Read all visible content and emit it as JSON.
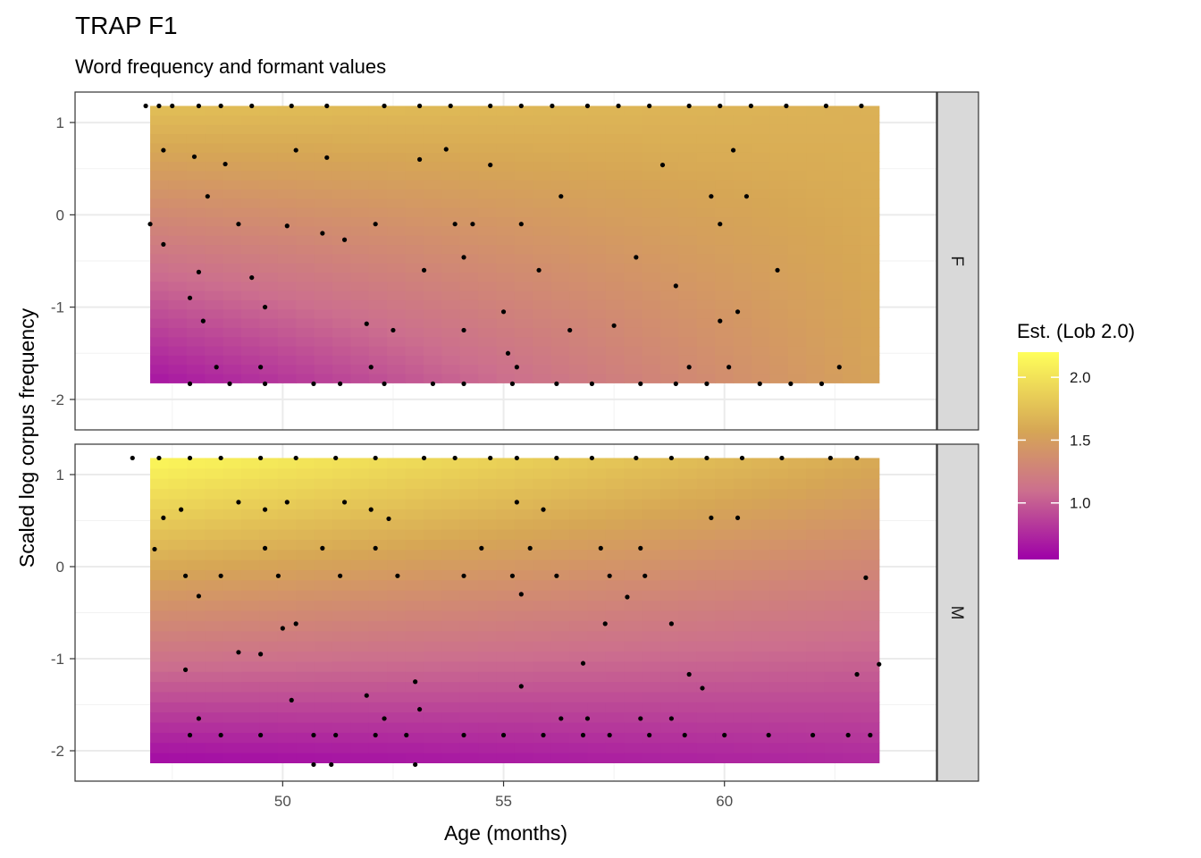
{
  "chart_data": {
    "type": "heatmap",
    "title": "TRAP F1",
    "subtitle": "Word frequency and formant values",
    "xlabel": "Age (months)",
    "ylabel": "Scaled log corpus frequency",
    "xlim": [
      45.3,
      64.8
    ],
    "ylim": [
      -2.33,
      1.33
    ],
    "x_ticks": [
      50,
      55,
      60
    ],
    "y_ticks": [
      1,
      0,
      -1,
      -2
    ],
    "grid": true,
    "legend": {
      "title": "Est. (Lob 2.0)",
      "position": "right",
      "range": [
        0.55,
        2.2
      ],
      "ticks": [
        2.0,
        1.5,
        1.0
      ],
      "colors": [
        "#9E00A8",
        "#CC6F8E",
        "#D6A655",
        "#FFFF5A"
      ]
    },
    "panels": [
      {
        "facet": "F",
        "surface": {
          "value_at_top_left": 1.75,
          "value_at_top_right": 1.65,
          "value_at_bottom_left": 0.65,
          "value_at_bottom_right": 1.55,
          "x_range": [
            47.0,
            63.5
          ],
          "y_range": [
            -1.82,
            1.18
          ]
        },
        "points": [
          [
            46.9,
            1.18
          ],
          [
            47.2,
            1.18
          ],
          [
            47.5,
            1.18
          ],
          [
            48.1,
            1.18
          ],
          [
            48.6,
            1.18
          ],
          [
            49.3,
            1.18
          ],
          [
            50.2,
            1.18
          ],
          [
            51.0,
            1.18
          ],
          [
            52.3,
            1.18
          ],
          [
            53.1,
            1.18
          ],
          [
            53.8,
            1.18
          ],
          [
            54.7,
            1.18
          ],
          [
            55.4,
            1.18
          ],
          [
            56.1,
            1.18
          ],
          [
            56.9,
            1.18
          ],
          [
            57.6,
            1.18
          ],
          [
            58.3,
            1.18
          ],
          [
            59.2,
            1.18
          ],
          [
            59.9,
            1.18
          ],
          [
            60.6,
            1.18
          ],
          [
            61.4,
            1.18
          ],
          [
            62.3,
            1.18
          ],
          [
            63.1,
            1.18
          ],
          [
            47.3,
            0.7
          ],
          [
            48.0,
            0.63
          ],
          [
            48.7,
            0.55
          ],
          [
            50.3,
            0.7
          ],
          [
            51.0,
            0.62
          ],
          [
            53.1,
            0.6
          ],
          [
            53.7,
            0.71
          ],
          [
            54.7,
            0.54
          ],
          [
            58.6,
            0.54
          ],
          [
            60.2,
            0.7
          ],
          [
            47.0,
            -0.1
          ],
          [
            48.3,
            0.2
          ],
          [
            49.0,
            -0.1
          ],
          [
            50.1,
            -0.12
          ],
          [
            50.9,
            -0.2
          ],
          [
            51.4,
            -0.27
          ],
          [
            52.1,
            -0.1
          ],
          [
            53.9,
            -0.1
          ],
          [
            54.3,
            -0.1
          ],
          [
            55.4,
            -0.1
          ],
          [
            56.3,
            0.2
          ],
          [
            59.7,
            0.2
          ],
          [
            59.9,
            -0.1
          ],
          [
            60.5,
            0.2
          ],
          [
            47.3,
            -0.32
          ],
          [
            48.1,
            -0.62
          ],
          [
            49.3,
            -0.68
          ],
          [
            53.2,
            -0.6
          ],
          [
            54.1,
            -0.46
          ],
          [
            55.8,
            -0.6
          ],
          [
            58.0,
            -0.46
          ],
          [
            58.9,
            -0.77
          ],
          [
            61.2,
            -0.6
          ],
          [
            47.9,
            -0.9
          ],
          [
            48.2,
            -1.15
          ],
          [
            49.6,
            -1.0
          ],
          [
            51.9,
            -1.18
          ],
          [
            52.5,
            -1.25
          ],
          [
            54.1,
            -1.25
          ],
          [
            55.0,
            -1.05
          ],
          [
            56.5,
            -1.25
          ],
          [
            57.5,
            -1.2
          ],
          [
            59.9,
            -1.15
          ],
          [
            60.3,
            -1.05
          ],
          [
            48.5,
            -1.65
          ],
          [
            49.5,
            -1.65
          ],
          [
            52.0,
            -1.65
          ],
          [
            55.1,
            -1.5
          ],
          [
            55.3,
            -1.65
          ],
          [
            59.2,
            -1.65
          ],
          [
            60.1,
            -1.65
          ],
          [
            62.6,
            -1.65
          ],
          [
            47.9,
            -1.83
          ],
          [
            48.8,
            -1.83
          ],
          [
            49.6,
            -1.83
          ],
          [
            50.7,
            -1.83
          ],
          [
            51.3,
            -1.83
          ],
          [
            52.3,
            -1.83
          ],
          [
            53.4,
            -1.83
          ],
          [
            54.1,
            -1.83
          ],
          [
            55.2,
            -1.83
          ],
          [
            56.2,
            -1.83
          ],
          [
            57.0,
            -1.83
          ],
          [
            58.1,
            -1.83
          ],
          [
            58.9,
            -1.83
          ],
          [
            59.6,
            -1.83
          ],
          [
            60.8,
            -1.83
          ],
          [
            61.5,
            -1.83
          ],
          [
            62.2,
            -1.83
          ]
        ]
      },
      {
        "facet": "M",
        "surface": {
          "value_at_top_left": 2.15,
          "value_at_top_right": 1.6,
          "value_at_bottom_left": 0.6,
          "value_at_bottom_right": 0.75,
          "x_range": [
            47.0,
            63.5
          ],
          "y_range": [
            -2.13,
            1.18
          ]
        },
        "points": [
          [
            46.6,
            1.18
          ],
          [
            47.2,
            1.18
          ],
          [
            47.9,
            1.18
          ],
          [
            48.6,
            1.18
          ],
          [
            49.5,
            1.18
          ],
          [
            50.3,
            1.18
          ],
          [
            51.2,
            1.18
          ],
          [
            52.1,
            1.18
          ],
          [
            53.2,
            1.18
          ],
          [
            53.9,
            1.18
          ],
          [
            54.7,
            1.18
          ],
          [
            55.3,
            1.18
          ],
          [
            56.2,
            1.18
          ],
          [
            57.0,
            1.18
          ],
          [
            58.0,
            1.18
          ],
          [
            58.8,
            1.18
          ],
          [
            59.6,
            1.18
          ],
          [
            60.4,
            1.18
          ],
          [
            61.3,
            1.18
          ],
          [
            62.4,
            1.18
          ],
          [
            63.0,
            1.18
          ],
          [
            47.3,
            0.53
          ],
          [
            47.7,
            0.62
          ],
          [
            49.0,
            0.7
          ],
          [
            49.6,
            0.62
          ],
          [
            50.1,
            0.7
          ],
          [
            51.4,
            0.7
          ],
          [
            52.0,
            0.62
          ],
          [
            52.4,
            0.52
          ],
          [
            55.3,
            0.7
          ],
          [
            55.9,
            0.62
          ],
          [
            59.7,
            0.53
          ],
          [
            60.3,
            0.53
          ],
          [
            47.1,
            0.19
          ],
          [
            49.6,
            0.2
          ],
          [
            50.9,
            0.2
          ],
          [
            52.1,
            0.2
          ],
          [
            54.5,
            0.2
          ],
          [
            55.6,
            0.2
          ],
          [
            57.2,
            0.2
          ],
          [
            58.1,
            0.2
          ],
          [
            47.8,
            -0.1
          ],
          [
            48.6,
            -0.1
          ],
          [
            49.9,
            -0.1
          ],
          [
            51.3,
            -0.1
          ],
          [
            52.6,
            -0.1
          ],
          [
            54.1,
            -0.1
          ],
          [
            55.2,
            -0.1
          ],
          [
            56.2,
            -0.1
          ],
          [
            57.4,
            -0.1
          ],
          [
            58.2,
            -0.1
          ],
          [
            63.2,
            -0.12
          ],
          [
            48.1,
            -0.32
          ],
          [
            50.0,
            -0.67
          ],
          [
            50.3,
            -0.62
          ],
          [
            55.4,
            -0.3
          ],
          [
            57.3,
            -0.62
          ],
          [
            57.8,
            -0.33
          ],
          [
            58.8,
            -0.62
          ],
          [
            49.0,
            -0.93
          ],
          [
            49.5,
            -0.95
          ],
          [
            47.8,
            -1.12
          ],
          [
            51.9,
            -1.4
          ],
          [
            53.0,
            -1.25
          ],
          [
            55.4,
            -1.3
          ],
          [
            56.8,
            -1.05
          ],
          [
            59.2,
            -1.17
          ],
          [
            59.5,
            -1.32
          ],
          [
            63.5,
            -1.06
          ],
          [
            63.0,
            -1.17
          ],
          [
            48.1,
            -1.65
          ],
          [
            50.2,
            -1.45
          ],
          [
            52.3,
            -1.65
          ],
          [
            53.1,
            -1.55
          ],
          [
            56.3,
            -1.65
          ],
          [
            56.9,
            -1.65
          ],
          [
            58.1,
            -1.65
          ],
          [
            58.8,
            -1.65
          ],
          [
            47.9,
            -1.83
          ],
          [
            48.6,
            -1.83
          ],
          [
            49.5,
            -1.83
          ],
          [
            50.7,
            -1.83
          ],
          [
            51.2,
            -1.83
          ],
          [
            52.1,
            -1.83
          ],
          [
            52.8,
            -1.83
          ],
          [
            54.1,
            -1.83
          ],
          [
            55.0,
            -1.83
          ],
          [
            55.9,
            -1.83
          ],
          [
            56.8,
            -1.83
          ],
          [
            57.4,
            -1.83
          ],
          [
            58.3,
            -1.83
          ],
          [
            59.1,
            -1.83
          ],
          [
            60.0,
            -1.83
          ],
          [
            61.0,
            -1.83
          ],
          [
            62.0,
            -1.83
          ],
          [
            62.8,
            -1.83
          ],
          [
            63.3,
            -1.83
          ],
          [
            50.7,
            -2.15
          ],
          [
            51.1,
            -2.15
          ],
          [
            53.0,
            -2.15
          ]
        ]
      }
    ]
  }
}
